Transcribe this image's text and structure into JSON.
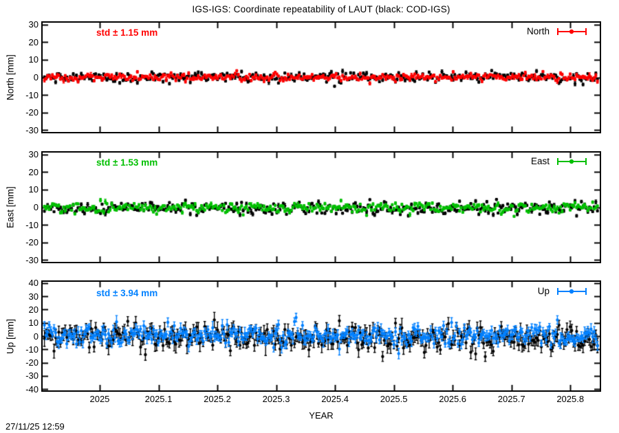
{
  "title": "IGS-IGS: Coordinate repeatability of LAUT (black: COD-IGS)",
  "footer": {
    "timestamp": "27/11/25 12:59"
  },
  "colors": {
    "background": "#ffffff",
    "axis": "#000000",
    "reference_series": "#000000",
    "north": "#ff0000",
    "east": "#00bf00",
    "up": "#0080ff"
  },
  "x_axis": {
    "label": "YEAR",
    "range": [
      2024.903,
      2025.85
    ],
    "tick_values": [
      2025,
      2025.1,
      2025.2,
      2025.3,
      2025.4,
      2025.5,
      2025.6,
      2025.7,
      2025.8
    ],
    "tick_labels": [
      "2025",
      "2025.1",
      "2025.2",
      "2025.3",
      "2025.4",
      "2025.5",
      "2025.6",
      "2025.7",
      "2025.8"
    ]
  },
  "chart_data": [
    {
      "type": "scatter",
      "panel": "north",
      "ylabel": "North [mm]",
      "ylim": [
        -30,
        30
      ],
      "yticks": [
        30,
        20,
        10,
        0,
        -10,
        -20,
        -30
      ],
      "std_label": "std ± 1.15 mm",
      "std_mm": 1.15,
      "legend_label": "North",
      "color": "#ff0000",
      "marker": "filled-circle-with-errorbar",
      "n_points": 346,
      "x_start": 2024.906,
      "x_step": 0.002725,
      "series": [
        {
          "name": "COD-IGS",
          "color": "#000000",
          "mean_mm": 0.0,
          "std_mm": 1.5,
          "err_base_mm": 0.5,
          "err_var_mm": 0.3,
          "seed": 101
        },
        {
          "name": "IGS-IGS",
          "color": "#ff0000",
          "mean_mm": 0.0,
          "std_mm": 1.15,
          "err_base_mm": 0.5,
          "err_var_mm": 0.3,
          "seed": 102
        }
      ]
    },
    {
      "type": "scatter",
      "panel": "east",
      "ylabel": "East [mm]",
      "ylim": [
        -30,
        30
      ],
      "yticks": [
        30,
        20,
        10,
        0,
        -10,
        -20,
        -30
      ],
      "std_label": "std ± 1.53 mm",
      "std_mm": 1.53,
      "legend_label": "East",
      "color": "#00bf00",
      "marker": "filled-circle-with-errorbar",
      "n_points": 346,
      "x_start": 2024.906,
      "x_step": 0.002725,
      "series": [
        {
          "name": "COD-IGS",
          "color": "#000000",
          "mean_mm": -0.4,
          "std_mm": 1.8,
          "err_base_mm": 0.5,
          "err_var_mm": 0.3,
          "seed": 201
        },
        {
          "name": "IGS-IGS",
          "color": "#00bf00",
          "mean_mm": -0.4,
          "std_mm": 1.53,
          "err_base_mm": 0.5,
          "err_var_mm": 0.3,
          "seed": 202
        }
      ]
    },
    {
      "type": "scatter",
      "panel": "up",
      "ylabel": "Up [mm]",
      "ylim": [
        -40,
        40
      ],
      "yticks": [
        40,
        30,
        20,
        10,
        0,
        -10,
        -20,
        -30,
        -40
      ],
      "std_label": "std ± 3.94 mm",
      "std_mm": 3.94,
      "legend_label": "Up",
      "color": "#0080ff",
      "marker": "filled-circle-with-errorbar",
      "n_points": 346,
      "x_start": 2024.906,
      "x_step": 0.002725,
      "series": [
        {
          "name": "COD-IGS",
          "color": "#000000",
          "mean_mm": -1.2,
          "std_mm": 4.8,
          "err_base_mm": 2.8,
          "err_var_mm": 1.8,
          "seed": 301
        },
        {
          "name": "IGS-IGS",
          "color": "#0080ff",
          "mean_mm": 0.8,
          "std_mm": 3.94,
          "err_base_mm": 2.2,
          "err_var_mm": 1.2,
          "seed": 302
        }
      ]
    }
  ]
}
